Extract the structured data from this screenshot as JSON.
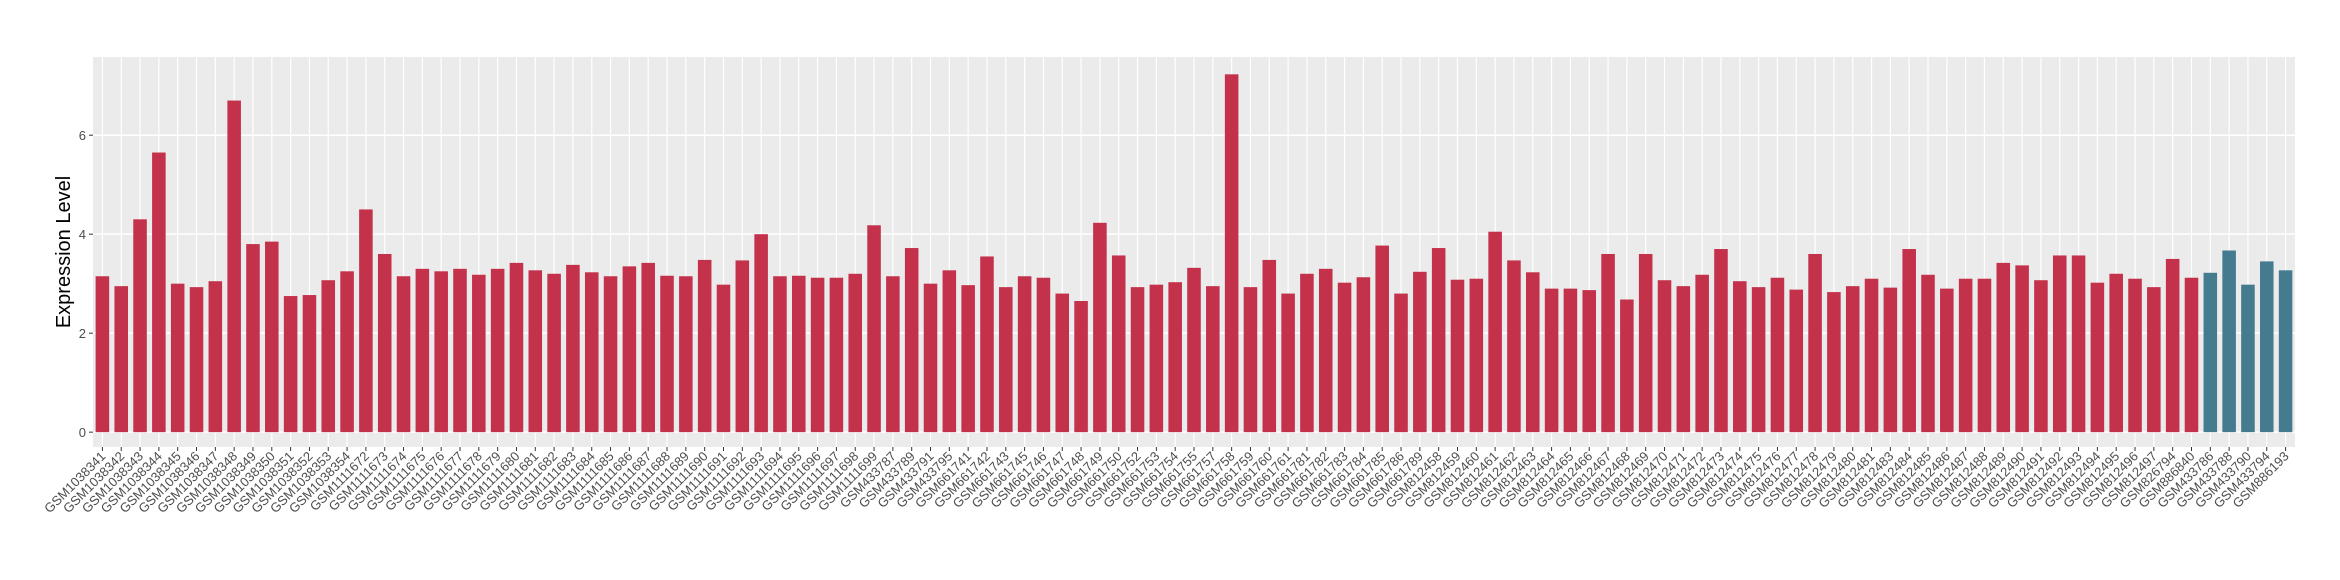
{
  "chart_data": {
    "type": "bar",
    "y_label": "Expression Level",
    "categories": [
      "GSM1038341",
      "GSM1038342",
      "GSM1038343",
      "GSM1038344",
      "GSM1038345",
      "GSM1038346",
      "GSM1038347",
      "GSM1038348",
      "GSM1038349",
      "GSM1038350",
      "GSM1038351",
      "GSM1038352",
      "GSM1038353",
      "GSM1038354",
      "GSM1111672",
      "GSM1111673",
      "GSM1111674",
      "GSM1111675",
      "GSM1111676",
      "GSM1111677",
      "GSM1111678",
      "GSM1111679",
      "GSM1111680",
      "GSM1111681",
      "GSM1111682",
      "GSM1111683",
      "GSM1111684",
      "GSM1111685",
      "GSM1111686",
      "GSM1111687",
      "GSM1111688",
      "GSM1111689",
      "GSM1111690",
      "GSM1111691",
      "GSM1111692",
      "GSM1111693",
      "GSM1111694",
      "GSM1111695",
      "GSM1111696",
      "GSM1111697",
      "GSM1111698",
      "GSM1111699",
      "GSM433787",
      "GSM433789",
      "GSM433791",
      "GSM433795",
      "GSM661741",
      "GSM661742",
      "GSM661743",
      "GSM661745",
      "GSM661746",
      "GSM661747",
      "GSM661748",
      "GSM661749",
      "GSM661750",
      "GSM661752",
      "GSM661753",
      "GSM661754",
      "GSM661755",
      "GSM661757",
      "GSM661758",
      "GSM661759",
      "GSM661760",
      "GSM661761",
      "GSM661781",
      "GSM661782",
      "GSM661783",
      "GSM661784",
      "GSM661785",
      "GSM661786",
      "GSM661789",
      "GSM812458",
      "GSM812459",
      "GSM812460",
      "GSM812461",
      "GSM812462",
      "GSM812463",
      "GSM812464",
      "GSM812465",
      "GSM812466",
      "GSM812467",
      "GSM812468",
      "GSM812469",
      "GSM812470",
      "GSM812471",
      "GSM812472",
      "GSM812473",
      "GSM812474",
      "GSM812475",
      "GSM812476",
      "GSM812477",
      "GSM812478",
      "GSM812479",
      "GSM812480",
      "GSM812481",
      "GSM812483",
      "GSM812484",
      "GSM812485",
      "GSM812486",
      "GSM812487",
      "GSM812488",
      "GSM812489",
      "GSM812490",
      "GSM812491",
      "GSM812492",
      "GSM812493",
      "GSM812494",
      "GSM812495",
      "GSM812496",
      "GSM812497",
      "GSM826794",
      "GSM886840",
      "GSM433786",
      "GSM433788",
      "GSM433790",
      "GSM433794",
      "GSM886193"
    ],
    "values": [
      3.15,
      2.95,
      4.3,
      5.65,
      3.0,
      2.93,
      3.05,
      6.7,
      3.8,
      3.85,
      2.75,
      2.77,
      3.07,
      3.25,
      4.5,
      3.6,
      3.15,
      3.3,
      3.25,
      3.3,
      3.18,
      3.3,
      3.42,
      3.27,
      3.2,
      3.38,
      3.23,
      3.15,
      3.35,
      3.42,
      3.16,
      3.15,
      3.48,
      2.98,
      3.47,
      4.0,
      3.15,
      3.16,
      3.12,
      3.12,
      3.2,
      4.18,
      3.15,
      3.72,
      3.0,
      3.27,
      2.97,
      3.55,
      2.93,
      3.15,
      3.12,
      2.8,
      2.65,
      4.23,
      3.57,
      2.93,
      2.98,
      3.03,
      3.32,
      2.95,
      7.23,
      2.93,
      3.48,
      2.8,
      3.2,
      3.3,
      3.02,
      3.13,
      3.77,
      2.8,
      3.24,
      3.72,
      3.08,
      3.1,
      4.05,
      3.47,
      3.23,
      2.9,
      2.9,
      2.87,
      3.6,
      2.68,
      3.6,
      3.07,
      2.95,
      3.18,
      3.7,
      3.05,
      2.93,
      3.12,
      2.88,
      3.6,
      2.83,
      2.95,
      3.1,
      2.92,
      3.7,
      3.18,
      2.9,
      3.1,
      3.1,
      3.42,
      3.37,
      3.07,
      3.57,
      3.57,
      3.02,
      3.2,
      3.1,
      2.93,
      3.5,
      3.12,
      3.22,
      3.67,
      2.98,
      3.45,
      3.27
    ],
    "colors": [
      "#c4314b",
      "#c4314b",
      "#c4314b",
      "#c4314b",
      "#c4314b",
      "#c4314b",
      "#c4314b",
      "#c4314b",
      "#c4314b",
      "#c4314b",
      "#c4314b",
      "#c4314b",
      "#c4314b",
      "#c4314b",
      "#c4314b",
      "#c4314b",
      "#c4314b",
      "#c4314b",
      "#c4314b",
      "#c4314b",
      "#c4314b",
      "#c4314b",
      "#c4314b",
      "#c4314b",
      "#c4314b",
      "#c4314b",
      "#c4314b",
      "#c4314b",
      "#c4314b",
      "#c4314b",
      "#c4314b",
      "#c4314b",
      "#c4314b",
      "#c4314b",
      "#c4314b",
      "#c4314b",
      "#c4314b",
      "#c4314b",
      "#c4314b",
      "#c4314b",
      "#c4314b",
      "#c4314b",
      "#c4314b",
      "#c4314b",
      "#c4314b",
      "#c4314b",
      "#c4314b",
      "#c4314b",
      "#c4314b",
      "#c4314b",
      "#c4314b",
      "#c4314b",
      "#c4314b",
      "#c4314b",
      "#c4314b",
      "#c4314b",
      "#c4314b",
      "#c4314b",
      "#c4314b",
      "#c4314b",
      "#c4314b",
      "#c4314b",
      "#c4314b",
      "#c4314b",
      "#c4314b",
      "#c4314b",
      "#c4314b",
      "#c4314b",
      "#c4314b",
      "#c4314b",
      "#c4314b",
      "#c4314b",
      "#c4314b",
      "#c4314b",
      "#c4314b",
      "#c4314b",
      "#c4314b",
      "#c4314b",
      "#c4314b",
      "#c4314b",
      "#c4314b",
      "#c4314b",
      "#c4314b",
      "#c4314b",
      "#c4314b",
      "#c4314b",
      "#c4314b",
      "#c4314b",
      "#c4314b",
      "#c4314b",
      "#c4314b",
      "#c4314b",
      "#c4314b",
      "#c4314b",
      "#c4314b",
      "#c4314b",
      "#c4314b",
      "#c4314b",
      "#c4314b",
      "#c4314b",
      "#c4314b",
      "#c4314b",
      "#c4314b",
      "#c4314b",
      "#c4314b",
      "#c4314b",
      "#c4314b",
      "#c4314b",
      "#c4314b",
      "#c4314b",
      "#c4314b",
      "#c4314b",
      "#457b8f",
      "#457b8f",
      "#457b8f",
      "#457b8f",
      "#457b8f"
    ],
    "ylim": [
      -0.3,
      7.58
    ],
    "yticks": [
      0,
      2,
      4,
      6
    ],
    "grid": true
  }
}
